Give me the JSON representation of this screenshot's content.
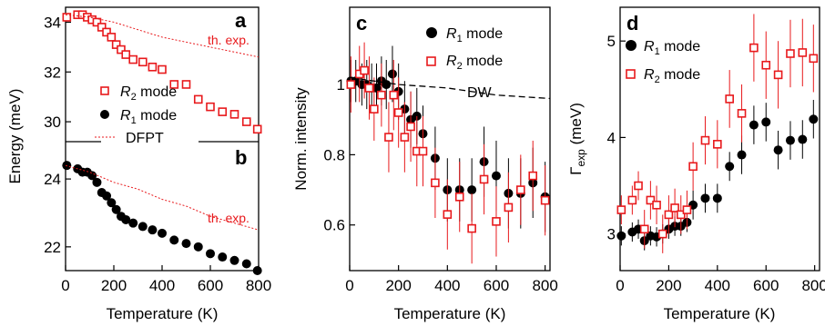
{
  "colors": {
    "r1": "#000000",
    "r2": "#e8191c",
    "err": "#e8191c"
  },
  "chart_data": [
    {
      "panel": "a",
      "type": "scatter",
      "ylabel": "Energy (meV)",
      "xlim": [
        0,
        800
      ],
      "ylim": [
        29.2,
        34.6
      ],
      "yticks": [
        30,
        32,
        34
      ],
      "legend": [
        {
          "label_pre": "R",
          "label_sub": "2",
          "label_post": " mode",
          "marker": "open-square-red"
        },
        {
          "label_pre": "R",
          "label_sub": "1",
          "label_post": " mode",
          "marker": "filled-circle-black"
        },
        {
          "label_pre": "DFPT",
          "label_sub": "",
          "label_post": "",
          "marker": "dotted-red-line"
        }
      ],
      "series": [
        {
          "name": "R2 mode",
          "x": [
            5,
            50,
            70,
            90,
            110,
            130,
            150,
            170,
            190,
            210,
            230,
            250,
            280,
            320,
            360,
            400,
            450,
            500,
            550,
            600,
            650,
            700,
            750,
            795
          ],
          "y": [
            34.2,
            34.3,
            34.3,
            34.2,
            34.1,
            34.0,
            33.8,
            33.6,
            33.4,
            33.1,
            32.9,
            32.7,
            32.5,
            32.4,
            32.2,
            32.1,
            31.5,
            31.5,
            30.9,
            30.6,
            30.4,
            30.3,
            30.0,
            29.7
          ]
        },
        {
          "name": "th. exp.",
          "style": "dotted",
          "x": [
            0,
            100,
            200,
            300,
            400,
            500,
            600,
            700,
            800
          ],
          "y": [
            34.3,
            34.2,
            34.0,
            33.7,
            33.4,
            33.2,
            33.0,
            32.8,
            32.6
          ]
        }
      ],
      "annotations": [
        "th. exp."
      ]
    },
    {
      "panel": "b",
      "type": "scatter",
      "xlabel": "Temperature (K)",
      "xlim": [
        0,
        800
      ],
      "ylim": [
        21.3,
        25.1
      ],
      "yticks": [
        22,
        24
      ],
      "xticks": [
        0,
        200,
        400,
        600,
        800
      ],
      "series": [
        {
          "name": "R1 mode",
          "x": [
            5,
            50,
            70,
            90,
            110,
            130,
            150,
            170,
            190,
            210,
            230,
            250,
            280,
            320,
            360,
            400,
            450,
            500,
            550,
            600,
            650,
            700,
            750,
            795
          ],
          "y": [
            24.4,
            24.3,
            24.2,
            24.2,
            24.1,
            23.9,
            23.6,
            23.5,
            23.3,
            23.1,
            22.9,
            22.8,
            22.7,
            22.6,
            22.5,
            22.4,
            22.2,
            22.1,
            22.0,
            21.8,
            21.7,
            21.6,
            21.5,
            21.3
          ]
        },
        {
          "name": "th. exp.",
          "style": "dotted",
          "x": [
            0,
            100,
            200,
            300,
            400,
            500,
            600,
            700,
            800
          ],
          "y": [
            24.4,
            24.2,
            23.9,
            23.7,
            23.4,
            23.2,
            22.9,
            22.7,
            22.5
          ]
        }
      ],
      "annotations": [
        "th. exp."
      ]
    },
    {
      "panel": "c",
      "type": "scatter",
      "xlabel": "Temperature (K)",
      "ylabel": "Norm. intensity",
      "xlim": [
        0,
        820
      ],
      "ylim": [
        0.47,
        1.22
      ],
      "yticks": [
        0.6,
        0.8,
        1.0
      ],
      "xticks": [
        0,
        200,
        400,
        600,
        800
      ],
      "legend": [
        {
          "label_pre": "R",
          "label_sub": "1",
          "label_post": " mode",
          "marker": "filled-circle-black"
        },
        {
          "label_pre": "R",
          "label_sub": "2",
          "label_post": " mode",
          "marker": "open-square-red"
        }
      ],
      "series": [
        {
          "name": "R1 mode",
          "x": [
            5,
            25,
            50,
            70,
            90,
            110,
            130,
            150,
            175,
            200,
            225,
            250,
            275,
            300,
            350,
            400,
            450,
            500,
            550,
            600,
            650,
            700,
            750,
            800
          ],
          "y": [
            1.01,
            1.01,
            1.0,
            1.0,
            0.99,
            0.99,
            1.01,
            1.0,
            1.03,
            0.98,
            0.93,
            0.9,
            0.91,
            0.86,
            0.79,
            0.7,
            0.7,
            0.7,
            0.78,
            0.74,
            0.69,
            0.69,
            0.72,
            0.68
          ],
          "err": [
            0.06,
            0.06,
            0.06,
            0.07,
            0.07,
            0.07,
            0.07,
            0.07,
            0.08,
            0.08,
            0.08,
            0.08,
            0.08,
            0.08,
            0.09,
            0.09,
            0.09,
            0.09,
            0.1,
            0.1,
            0.1,
            0.1,
            0.1,
            0.1
          ]
        },
        {
          "name": "R2 mode",
          "x": [
            5,
            40,
            60,
            80,
            100,
            130,
            160,
            180,
            200,
            225,
            250,
            275,
            300,
            350,
            400,
            450,
            500,
            550,
            600,
            650,
            700,
            750,
            800
          ],
          "y": [
            1.0,
            1.03,
            1.04,
            0.99,
            0.93,
            0.97,
            0.85,
            0.97,
            0.92,
            0.85,
            0.88,
            0.81,
            0.81,
            0.72,
            0.63,
            0.68,
            0.59,
            0.73,
            0.61,
            0.65,
            0.7,
            0.74,
            0.67
          ],
          "err": [
            0.08,
            0.08,
            0.08,
            0.09,
            0.09,
            0.09,
            0.1,
            0.1,
            0.1,
            0.1,
            0.1,
            0.1,
            0.1,
            0.1,
            0.1,
            0.1,
            0.1,
            0.1,
            0.1,
            0.1,
            0.1,
            0.1,
            0.1
          ]
        },
        {
          "name": "DW",
          "style": "dashed",
          "x": [
            0,
            200,
            400,
            600,
            820
          ],
          "y": [
            1.02,
            1.0,
            0.99,
            0.97,
            0.96
          ]
        }
      ],
      "annotations": [
        "DW"
      ]
    },
    {
      "panel": "d",
      "type": "scatter",
      "xlabel": "Temperature (K)",
      "ylabel_pre": "Γ",
      "ylabel_sub": "exp",
      "ylabel_post": " (meV)",
      "xlim": [
        0,
        820
      ],
      "ylim": [
        2.62,
        5.35
      ],
      "yticks": [
        3,
        4,
        5
      ],
      "xticks": [
        0,
        200,
        400,
        600,
        800
      ],
      "legend": [
        {
          "label_pre": "R",
          "label_sub": "1",
          "label_post": " mode",
          "marker": "filled-circle-black"
        },
        {
          "label_pre": "R",
          "label_sub": "2",
          "label_post": " mode",
          "marker": "open-square-red"
        }
      ],
      "series": [
        {
          "name": "R1 mode",
          "x": [
            5,
            50,
            75,
            100,
            125,
            150,
            175,
            200,
            225,
            250,
            275,
            300,
            350,
            400,
            450,
            500,
            550,
            600,
            650,
            700,
            750,
            795
          ],
          "y": [
            2.98,
            3.02,
            3.05,
            2.93,
            2.98,
            2.97,
            3.0,
            3.05,
            3.08,
            3.08,
            3.12,
            3.3,
            3.37,
            3.37,
            3.7,
            3.82,
            4.13,
            4.16,
            3.87,
            3.97,
            3.98,
            4.19
          ],
          "err": [
            0.1,
            0.1,
            0.1,
            0.1,
            0.1,
            0.1,
            0.1,
            0.1,
            0.1,
            0.1,
            0.1,
            0.15,
            0.15,
            0.15,
            0.15,
            0.2,
            0.2,
            0.2,
            0.2,
            0.2,
            0.2,
            0.2
          ]
        },
        {
          "name": "R2 mode",
          "x": [
            5,
            50,
            75,
            100,
            125,
            150,
            175,
            200,
            225,
            250,
            275,
            300,
            350,
            400,
            450,
            500,
            550,
            600,
            650,
            700,
            750,
            795
          ],
          "y": [
            3.25,
            3.35,
            3.5,
            3.05,
            3.35,
            3.3,
            3.0,
            3.2,
            3.27,
            3.2,
            3.25,
            3.7,
            3.97,
            3.93,
            4.4,
            4.25,
            4.93,
            4.75,
            4.65,
            4.87,
            4.88,
            4.82
          ],
          "err": [
            0.15,
            0.15,
            0.15,
            0.2,
            0.2,
            0.2,
            0.2,
            0.2,
            0.2,
            0.2,
            0.2,
            0.25,
            0.25,
            0.25,
            0.3,
            0.3,
            0.35,
            0.35,
            0.35,
            0.35,
            0.35,
            0.35
          ]
        }
      ]
    }
  ]
}
